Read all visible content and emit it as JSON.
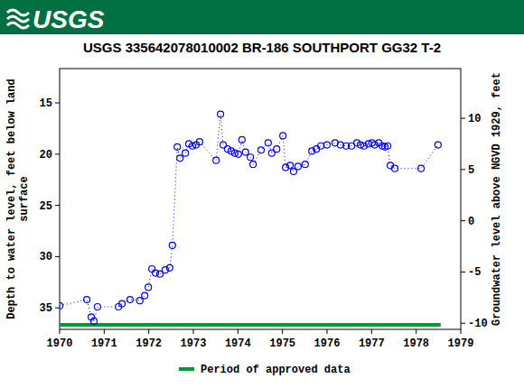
{
  "header": "USGS",
  "chart_data": {
    "type": "scatter",
    "title": "USGS 335642078010002 BR-186 SOUTHPORT GG32 T-2",
    "y_label": [
      "Depth to water level, feet below land",
      "surface"
    ],
    "y2_label": "Groundwater level above NGVD 1929, feet",
    "xlim": [
      1970,
      1979
    ],
    "xticks": [
      1970,
      1971,
      1972,
      1973,
      1974,
      1975,
      1976,
      1977,
      1978,
      1979
    ],
    "ylim": [
      37.1,
      11.65
    ],
    "yticks": [
      15,
      20,
      25,
      30,
      35
    ],
    "y2lim": [
      -10.6,
      14.85
    ],
    "y2ticks": [
      10,
      5,
      0,
      -5,
      -10
    ],
    "x": [
      1970.0,
      1970.61,
      1970.71,
      1970.77,
      1970.85,
      1971.32,
      1971.4,
      1971.58,
      1971.8,
      1971.91,
      1971.99,
      1972.07,
      1972.15,
      1972.25,
      1972.37,
      1972.47,
      1972.53,
      1972.64,
      1972.7,
      1972.82,
      1972.9,
      1972.98,
      1973.06,
      1973.14,
      1973.51,
      1973.61,
      1973.67,
      1973.77,
      1973.85,
      1973.93,
      1974.01,
      1974.09,
      1974.17,
      1974.28,
      1974.34,
      1974.52,
      1974.68,
      1974.76,
      1974.87,
      1975.01,
      1975.07,
      1975.17,
      1975.25,
      1975.35,
      1975.51,
      1975.66,
      1975.76,
      1975.86,
      1976.0,
      1976.18,
      1976.3,
      1976.43,
      1976.55,
      1976.67,
      1976.75,
      1976.83,
      1976.93,
      1977.01,
      1977.07,
      1977.16,
      1977.24,
      1977.3,
      1977.36,
      1977.42,
      1977.52,
      1978.11,
      1978.49
    ],
    "series": [
      {
        "color": "#0000ff",
        "marker": "circle",
        "line_style": "dotted",
        "values": [
          34.8,
          34.2,
          35.9,
          36.3,
          34.9,
          34.9,
          34.6,
          34.2,
          34.3,
          33.8,
          33.0,
          31.2,
          31.6,
          31.7,
          31.3,
          31.1,
          28.9,
          19.3,
          20.4,
          19.9,
          19.0,
          19.2,
          19.1,
          18.8,
          20.6,
          16.1,
          19.1,
          19.5,
          19.7,
          19.9,
          20.0,
          18.6,
          19.8,
          20.3,
          21.0,
          19.6,
          18.9,
          19.9,
          19.5,
          18.2,
          21.3,
          21.1,
          21.7,
          21.2,
          21.0,
          19.7,
          19.5,
          19.2,
          19.1,
          18.9,
          19.1,
          19.2,
          19.2,
          18.9,
          19.1,
          19.2,
          19.0,
          18.9,
          19.1,
          18.9,
          19.2,
          19.3,
          19.2,
          21.1,
          21.4,
          21.4,
          19.1
        ]
      }
    ],
    "period": {
      "label": "Period of approved data",
      "start": 1970,
      "end": 1978.55,
      "color": "#009933"
    }
  }
}
